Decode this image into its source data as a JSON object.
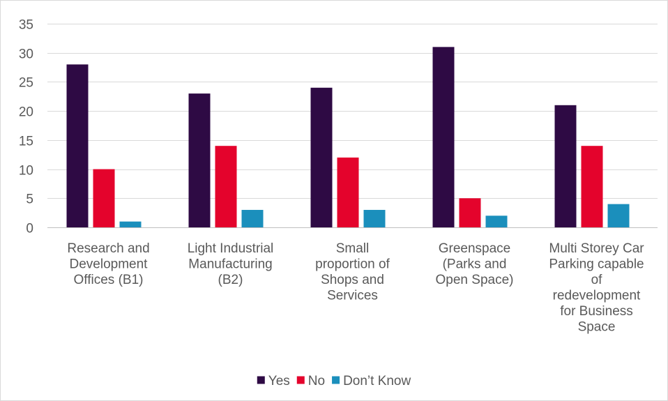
{
  "chart_data": {
    "type": "bar",
    "title": "",
    "xlabel": "",
    "ylabel": "",
    "ylim": [
      0,
      35
    ],
    "yticks": [
      0,
      5,
      10,
      15,
      20,
      25,
      30,
      35
    ],
    "grid": true,
    "legend_position": "bottom",
    "categories": [
      [
        "Research and",
        "Development",
        "Offices (B1)"
      ],
      [
        "Light Industrial",
        "Manufacturing",
        "(B2)"
      ],
      [
        "Small",
        "proportion of",
        "Shops and",
        "Services"
      ],
      [
        "Greenspace",
        "(Parks and",
        "Open Space)"
      ],
      [
        "Multi Storey Car",
        "Parking capable",
        "of",
        "redevelopment",
        "for Business",
        "Space"
      ]
    ],
    "series": [
      {
        "name": "Yes",
        "color": "#2e0a44",
        "values": [
          28,
          23,
          24,
          31,
          21
        ]
      },
      {
        "name": "No",
        "color": "#e4032c",
        "values": [
          10,
          14,
          12,
          5,
          14
        ]
      },
      {
        "name": "Don’t Know",
        "color": "#1b8fbc",
        "values": [
          1,
          3,
          3,
          2,
          4
        ]
      }
    ]
  }
}
